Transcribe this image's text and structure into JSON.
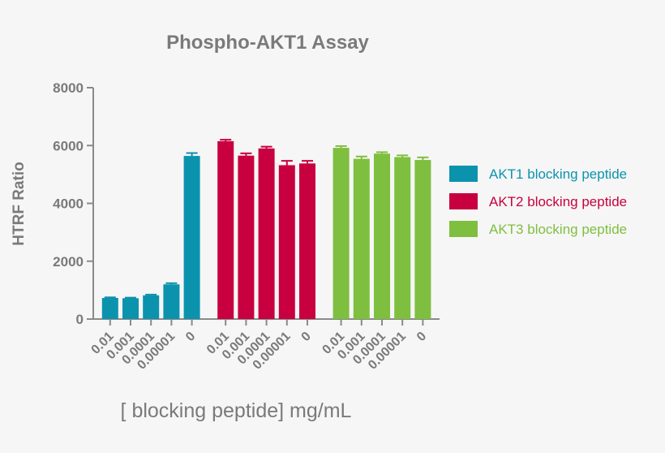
{
  "chart_data": {
    "type": "bar",
    "title": "Phospho-AKT1 Assay",
    "xlabel": "[ blocking peptide] mg/mL",
    "ylabel": "HTRF Ratio",
    "ylim": [
      0,
      8000
    ],
    "yticks": [
      0,
      2000,
      4000,
      6000,
      8000
    ],
    "ytick_labels": [
      "0",
      "2000",
      "4000",
      "6000",
      "8000"
    ],
    "categories": [
      "0.01",
      "0.001",
      "0.0001",
      "0.00001",
      "0"
    ],
    "error_bars": true,
    "grid": false,
    "legend_position": "right",
    "series": [
      {
        "name": "AKT1 blocking peptide",
        "color": "#0b93ae",
        "values": [
          730,
          720,
          820,
          1200,
          5640
        ],
        "errors": [
          20,
          20,
          25,
          40,
          100
        ]
      },
      {
        "name": "AKT2 blocking peptide",
        "color": "#c8003f",
        "values": [
          6150,
          5650,
          5900,
          5320,
          5380
        ],
        "errors": [
          50,
          80,
          60,
          150,
          90
        ]
      },
      {
        "name": "AKT3 blocking peptide",
        "color": "#7fbf3f",
        "values": [
          5920,
          5540,
          5720,
          5600,
          5500
        ],
        "errors": [
          60,
          80,
          50,
          60,
          90
        ]
      }
    ]
  }
}
